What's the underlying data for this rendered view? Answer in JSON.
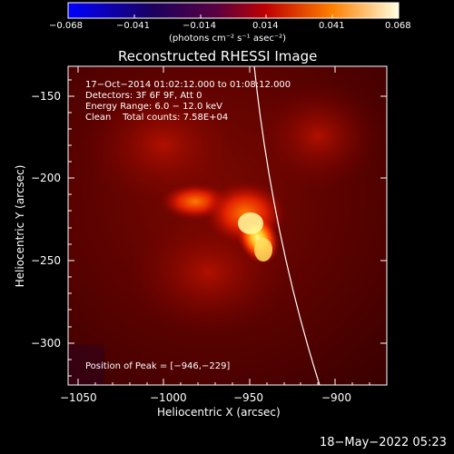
{
  "colorbar": {
    "ticks": [
      "−0.068",
      "−0.041",
      "−0.014",
      "0.014",
      "0.041",
      "0.068"
    ],
    "units": "(photons cm⁻² s⁻¹ asec⁻²)"
  },
  "plot": {
    "title": "Reconstructed RHESSI Image",
    "xlabel": "Heliocentric X (arcsec)",
    "ylabel": "Heliocentric Y (arcsec)",
    "xticks": [
      "−1050",
      "−1000",
      "−950",
      "−900"
    ],
    "yticks": [
      "−150",
      "−200",
      "−250",
      "−300"
    ]
  },
  "info": {
    "time_range": "17−Oct−2014 01:02:12.000 to 01:08:12.000",
    "detectors": "Detectors: 3F 6F 9F, Att 0",
    "energy": "Energy Range: 6.0 − 12.0 keV",
    "clean": "Clean    Total counts: 7.58E+04",
    "peak": "Position of Peak = [−946,−229]"
  },
  "footer": {
    "date": "18−May−2022 05:23"
  },
  "colors": {
    "background": "#000000",
    "text": "#ffffff",
    "limb_line": "#ffffff"
  }
}
